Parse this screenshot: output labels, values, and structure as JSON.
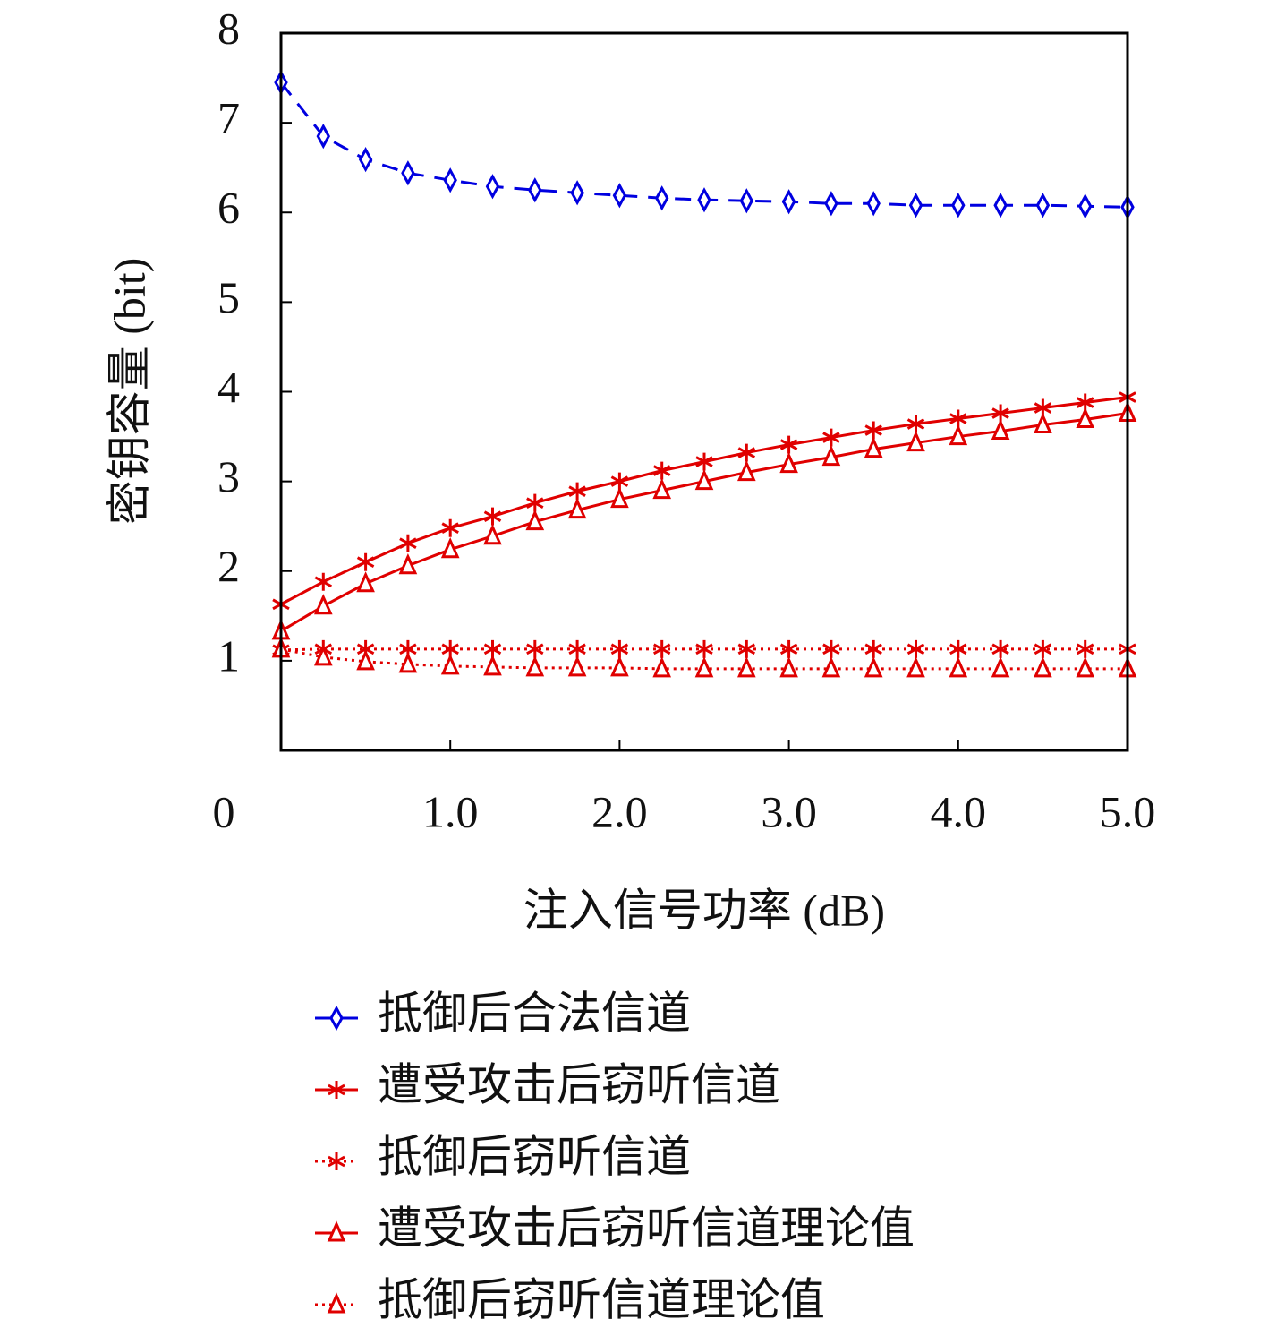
{
  "chart_data": {
    "type": "line",
    "x_label": "注入信号功率 (dB)",
    "y_label": "密钥容量 (bit)",
    "x": [
      0,
      0.25,
      0.5,
      0.75,
      1,
      1.25,
      1.5,
      1.75,
      2,
      2.25,
      2.5,
      2.75,
      3,
      3.25,
      3.5,
      3.75,
      4,
      4.25,
      4.5,
      4.75,
      5
    ],
    "xlim": [
      0,
      5
    ],
    "ylim": [
      0,
      8
    ],
    "xticks": [
      0,
      {
        "value": 1,
        "label": "1.0"
      },
      {
        "value": 2,
        "label": "2.0"
      },
      {
        "value": 3,
        "label": "3.0"
      },
      {
        "value": 4,
        "label": "4.0"
      },
      {
        "value": 5,
        "label": "5.0"
      }
    ],
    "yticks": [
      1,
      2,
      3,
      4,
      5,
      6,
      7,
      8
    ],
    "series": [
      {
        "name": "抵御后合法信道",
        "color": "#0000e0",
        "line": "dashed",
        "marker": "diamond",
        "values": [
          7.45,
          6.85,
          6.59,
          6.44,
          6.36,
          6.29,
          6.25,
          6.22,
          6.19,
          6.16,
          6.14,
          6.13,
          6.12,
          6.1,
          6.1,
          6.08,
          6.08,
          6.08,
          6.08,
          6.07,
          6.06
        ]
      },
      {
        "name": "遭受攻击后窃听信道",
        "color": "#e00000",
        "line": "solid",
        "marker": "star",
        "values": [
          1.63,
          1.88,
          2.1,
          2.31,
          2.48,
          2.61,
          2.76,
          2.89,
          3.0,
          3.12,
          3.22,
          3.32,
          3.41,
          3.49,
          3.57,
          3.64,
          3.7,
          3.76,
          3.82,
          3.88,
          3.94
        ]
      },
      {
        "name": "抵御后窃听信道",
        "color": "#e00000",
        "line": "dotted",
        "marker": "star",
        "values": [
          1.12,
          1.13,
          1.13,
          1.13,
          1.13,
          1.13,
          1.13,
          1.13,
          1.13,
          1.13,
          1.13,
          1.13,
          1.13,
          1.13,
          1.13,
          1.13,
          1.13,
          1.13,
          1.13,
          1.13,
          1.13
        ]
      },
      {
        "name": "遭受攻击后窃听信道理论值",
        "color": "#e00000",
        "line": "solid",
        "marker": "triangle",
        "values": [
          1.33,
          1.61,
          1.86,
          2.06,
          2.24,
          2.39,
          2.55,
          2.68,
          2.8,
          2.9,
          3.0,
          3.1,
          3.19,
          3.27,
          3.36,
          3.43,
          3.5,
          3.56,
          3.63,
          3.69,
          3.76
        ]
      },
      {
        "name": "抵御后窃听信道理论值",
        "color": "#e00000",
        "line": "dotted",
        "marker": "triangle",
        "values": [
          1.13,
          1.04,
          0.99,
          0.96,
          0.94,
          0.93,
          0.92,
          0.92,
          0.92,
          0.91,
          0.91,
          0.91,
          0.91,
          0.91,
          0.91,
          0.91,
          0.91,
          0.91,
          0.91,
          0.91,
          0.91
        ]
      }
    ]
  }
}
